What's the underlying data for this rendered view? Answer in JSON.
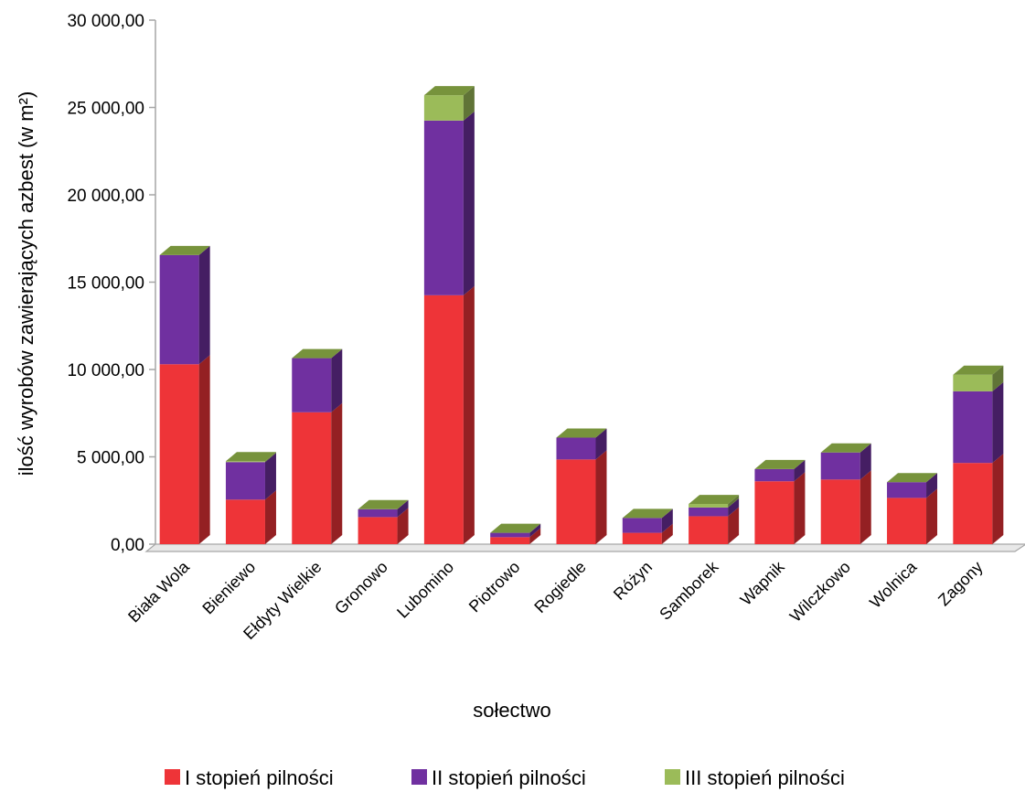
{
  "chart_data": {
    "type": "bar",
    "stacked": true,
    "style": "3d",
    "title": "",
    "xlabel": "sołectwo",
    "ylabel": "ilość wyrobów zawierających azbest (w m²)",
    "ylim": [
      0,
      30000
    ],
    "yticks": [
      "0,00",
      "5 000,00",
      "10 000,00",
      "15 000,00",
      "20 000,00",
      "25 000,00",
      "30 000,00"
    ],
    "ytick_values": [
      0,
      5000,
      10000,
      15000,
      20000,
      25000,
      30000
    ],
    "grid": false,
    "legend_position": "bottom",
    "categories": [
      "Biała Wola",
      "Bieniewo",
      "Ełdyty Wielkie",
      "Gronowo",
      "Lubomino",
      "Piotrowo",
      "Rogiedle",
      "Różyn",
      "Samborek",
      "Wapnik",
      "Wilczkowo",
      "Wolnica",
      "Zagony"
    ],
    "series": [
      {
        "name": "I stopień pilności",
        "color": "#ee3438",
        "values": [
          10300,
          2550,
          7550,
          1550,
          14250,
          400,
          4850,
          650,
          1600,
          3600,
          3700,
          2650,
          4650
        ]
      },
      {
        "name": "II stopień pilności",
        "color": "#7030a0",
        "values": [
          6250,
          2150,
          3100,
          450,
          10000,
          250,
          1250,
          850,
          500,
          700,
          1550,
          900,
          4100
        ]
      },
      {
        "name": "III stopień pilności",
        "color": "#9bbb59",
        "values": [
          0,
          50,
          0,
          0,
          1450,
          0,
          0,
          0,
          200,
          0,
          0,
          0,
          950
        ]
      }
    ]
  }
}
